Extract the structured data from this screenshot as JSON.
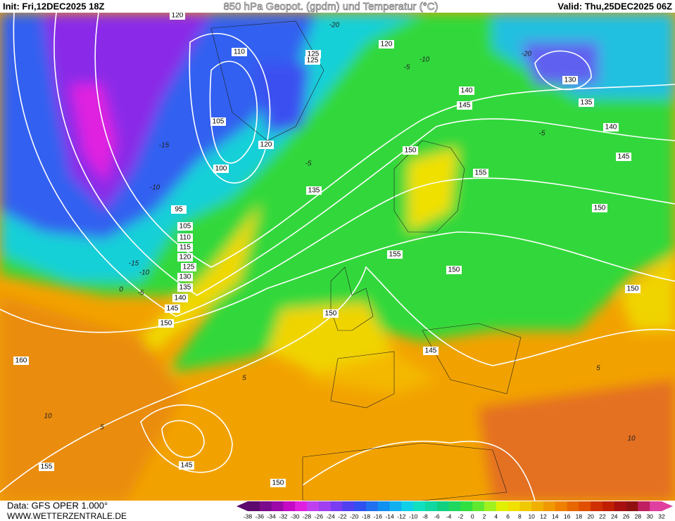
{
  "header": {
    "init": "Init: Fri,12DEC2025 18Z",
    "title": "850 hPa Geopot. (gpdm) und Temperatur (°C)",
    "valid": "Valid: Thu,25DEC2025 06Z"
  },
  "map": {
    "geopotential_labels": [
      120,
      110,
      105,
      100,
      95,
      105,
      110,
      115,
      120,
      125,
      130,
      135,
      140,
      145,
      150,
      160,
      155,
      145,
      150,
      150,
      145,
      150,
      155,
      155,
      150,
      145,
      140,
      135,
      130,
      120,
      125,
      125,
      120,
      135,
      150,
      145,
      140,
      150
    ],
    "temperature_labels": [
      -20,
      -10,
      -5,
      -15,
      -10,
      -15,
      -10,
      -5,
      0,
      -5,
      -20,
      5,
      10,
      5,
      5,
      10,
      -5
    ]
  },
  "scale": {
    "labels": [
      -38,
      -36,
      -34,
      -32,
      -30,
      -28,
      -26,
      -24,
      -22,
      -20,
      -18,
      -16,
      -14,
      -12,
      -10,
      -8,
      -6,
      -4,
      -2,
      0,
      2,
      4,
      6,
      8,
      10,
      12,
      14,
      16,
      18,
      20,
      22,
      24,
      26,
      28,
      30,
      32
    ],
    "colors": [
      "#5c0a6e",
      "#7a0a8c",
      "#9b0aa8",
      "#c40ac4",
      "#e020e0",
      "#c040f0",
      "#a040f0",
      "#7a3cf0",
      "#5040f0",
      "#3050f0",
      "#2070f0",
      "#1090f0",
      "#10b0f0",
      "#10d0e8",
      "#10e0c0",
      "#10d8a0",
      "#10d080",
      "#20d860",
      "#30e040",
      "#60e830",
      "#a0f020",
      "#e0f000",
      "#f0e000",
      "#f0c800",
      "#f0b000",
      "#f09800",
      "#f08000",
      "#e86800",
      "#e05000",
      "#d03000",
      "#c02000",
      "#a81010",
      "#901010",
      "#c02060",
      "#e040a0"
    ]
  },
  "footer": {
    "source": "Data: GFS OPER 1.000°",
    "website": "WWW.WETTERZENTRALE.DE"
  }
}
